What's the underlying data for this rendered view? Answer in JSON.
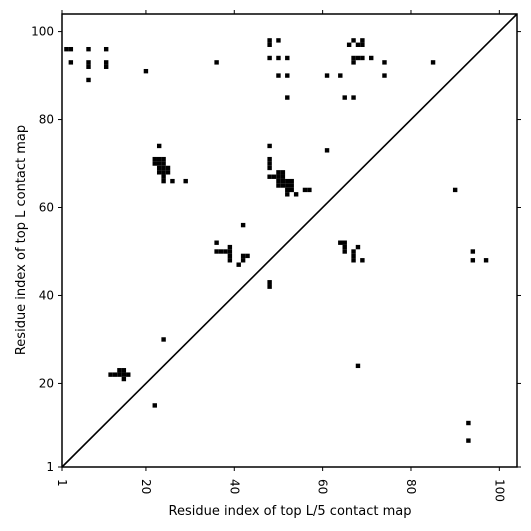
{
  "chart_data": {
    "type": "scatter",
    "title": "",
    "xlabel": "Residue index of top L/5 contact map",
    "ylabel": "Residue index of top L contact map",
    "xlim": [
      1,
      104
    ],
    "ylim": [
      1,
      104
    ],
    "xticks": [
      1,
      20,
      40,
      60,
      80,
      100
    ],
    "yticks": [
      1,
      20,
      40,
      60,
      80,
      100
    ],
    "grid": false,
    "diagonal": true,
    "marker": "square",
    "color": "#000000",
    "series": [
      {
        "points": [
          [
            2,
            96
          ],
          [
            3,
            96
          ],
          [
            3,
            93
          ],
          [
            7,
            96
          ],
          [
            7,
            93
          ],
          [
            7,
            92
          ],
          [
            7,
            89
          ],
          [
            11,
            96
          ],
          [
            11,
            93
          ],
          [
            11,
            92
          ],
          [
            20,
            91
          ],
          [
            36,
            93
          ],
          [
            48,
            98
          ],
          [
            48,
            97
          ],
          [
            50,
            98
          ],
          [
            48,
            94
          ],
          [
            50,
            94
          ],
          [
            52,
            94
          ],
          [
            50,
            90
          ],
          [
            52,
            90
          ],
          [
            52,
            85
          ],
          [
            61,
            90
          ],
          [
            64,
            90
          ],
          [
            66,
            97
          ],
          [
            67,
            98
          ],
          [
            68,
            97
          ],
          [
            69,
            98
          ],
          [
            69,
            97
          ],
          [
            67,
            94
          ],
          [
            68,
            94
          ],
          [
            69,
            94
          ],
          [
            71,
            94
          ],
          [
            67,
            93
          ],
          [
            74,
            93
          ],
          [
            74,
            90
          ],
          [
            85,
            93
          ],
          [
            65,
            85
          ],
          [
            67,
            85
          ],
          [
            61,
            73
          ],
          [
            23,
            74
          ],
          [
            22,
            71
          ],
          [
            23,
            71
          ],
          [
            24,
            71
          ],
          [
            22,
            70
          ],
          [
            23,
            70
          ],
          [
            24,
            70
          ],
          [
            23,
            69
          ],
          [
            24,
            69
          ],
          [
            25,
            69
          ],
          [
            23,
            68
          ],
          [
            24,
            68
          ],
          [
            25,
            68
          ],
          [
            24,
            67
          ],
          [
            24,
            66
          ],
          [
            26,
            66
          ],
          [
            29,
            66
          ],
          [
            48,
            74
          ],
          [
            48,
            71
          ],
          [
            48,
            70
          ],
          [
            48,
            69
          ],
          [
            48,
            67
          ],
          [
            49,
            67
          ],
          [
            50,
            68
          ],
          [
            51,
            68
          ],
          [
            50,
            67
          ],
          [
            51,
            67
          ],
          [
            50,
            66
          ],
          [
            51,
            66
          ],
          [
            52,
            66
          ],
          [
            53,
            66
          ],
          [
            50,
            65
          ],
          [
            51,
            65
          ],
          [
            52,
            65
          ],
          [
            53,
            65
          ],
          [
            52,
            64
          ],
          [
            53,
            64
          ],
          [
            52,
            63
          ],
          [
            54,
            63
          ],
          [
            56,
            64
          ],
          [
            57,
            64
          ],
          [
            90,
            64
          ],
          [
            36,
            52
          ],
          [
            36,
            50
          ],
          [
            37,
            50
          ],
          [
            38,
            50
          ],
          [
            39,
            51
          ],
          [
            39,
            50
          ],
          [
            39,
            49
          ],
          [
            39,
            48
          ],
          [
            42,
            56
          ],
          [
            42,
            49
          ],
          [
            43,
            49
          ],
          [
            42,
            48
          ],
          [
            41,
            47
          ],
          [
            64,
            52
          ],
          [
            65,
            52
          ],
          [
            65,
            51
          ],
          [
            65,
            50
          ],
          [
            67,
            50
          ],
          [
            68,
            51
          ],
          [
            67,
            49
          ],
          [
            67,
            48
          ],
          [
            69,
            48
          ],
          [
            94,
            50
          ],
          [
            94,
            48
          ],
          [
            97,
            48
          ],
          [
            48,
            43
          ],
          [
            48,
            42
          ],
          [
            24,
            30
          ],
          [
            14,
            23
          ],
          [
            15,
            23
          ],
          [
            12,
            22
          ],
          [
            13,
            22
          ],
          [
            14,
            22
          ],
          [
            15,
            22
          ],
          [
            16,
            22
          ],
          [
            15,
            21
          ],
          [
            68,
            24
          ],
          [
            22,
            15
          ],
          [
            93,
            11
          ],
          [
            93,
            7
          ]
        ]
      }
    ]
  }
}
